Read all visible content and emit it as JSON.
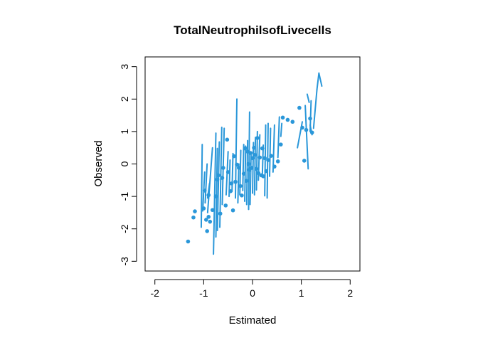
{
  "chart_data": {
    "type": "scatter",
    "title": "TotalNeutrophilsofLivecells",
    "xlabel": "Estimated",
    "ylabel": "Observed",
    "xlim": [
      -2.2,
      2.2
    ],
    "ylim": [
      -3.3,
      3.3
    ],
    "x_ticks": [
      -2,
      -1,
      0,
      1,
      2
    ],
    "y_ticks": [
      -3,
      -2,
      -1,
      0,
      1,
      2,
      3
    ],
    "x_tick_labels": [
      "-2",
      "-1",
      "0",
      "1",
      "2"
    ],
    "y_tick_labels": [
      "-3",
      "-2",
      "-1",
      "0",
      "1",
      "2",
      "3"
    ],
    "grid": false,
    "color": "#2a97d9",
    "points": [
      [
        -1.32,
        -2.39
      ],
      [
        -1.21,
        -1.65
      ],
      [
        -1.18,
        -1.46
      ],
      [
        -1.0,
        -1.37
      ],
      [
        -0.95,
        -1.72
      ],
      [
        -0.93,
        -2.07
      ],
      [
        -0.9,
        -1.63
      ],
      [
        -0.87,
        -1.78
      ],
      [
        -0.82,
        -1.42
      ],
      [
        -0.9,
        -0.96
      ],
      [
        -0.98,
        -0.82
      ],
      [
        -0.72,
        -0.48
      ],
      [
        -0.75,
        -1.0
      ],
      [
        -0.7,
        -0.35
      ],
      [
        -0.66,
        -1.53
      ],
      [
        -0.62,
        -0.43
      ],
      [
        -0.6,
        -0.12
      ],
      [
        -0.55,
        -1.28
      ],
      [
        -0.52,
        0.75
      ],
      [
        -0.5,
        -0.25
      ],
      [
        -0.45,
        -0.84
      ],
      [
        -0.43,
        -0.6
      ],
      [
        -0.4,
        -1.43
      ],
      [
        -0.38,
        0.24
      ],
      [
        -0.35,
        -0.55
      ],
      [
        -0.32,
        -0.02
      ],
      [
        -0.28,
        -0.12
      ],
      [
        -0.25,
        -0.68
      ],
      [
        -0.22,
        -0.97
      ],
      [
        -0.18,
        -0.3
      ],
      [
        -0.15,
        0.48
      ],
      [
        -0.12,
        -0.52
      ],
      [
        -0.1,
        0.38
      ],
      [
        -0.08,
        0.0
      ],
      [
        -0.06,
        -0.18
      ],
      [
        -0.04,
        0.34
      ],
      [
        -0.02,
        -0.12
      ],
      [
        0.0,
        0.18
      ],
      [
        0.03,
        0.5
      ],
      [
        0.05,
        0.28
      ],
      [
        0.08,
        -0.15
      ],
      [
        0.1,
        0.8
      ],
      [
        0.12,
        -0.28
      ],
      [
        0.15,
        0.2
      ],
      [
        0.18,
        -0.35
      ],
      [
        0.2,
        0.48
      ],
      [
        0.22,
        -0.38
      ],
      [
        0.25,
        0.18
      ],
      [
        0.28,
        -0.22
      ],
      [
        0.32,
        0.12
      ],
      [
        0.38,
        0.25
      ],
      [
        0.45,
        -0.08
      ],
      [
        0.52,
        0.08
      ],
      [
        0.58,
        0.6
      ],
      [
        0.62,
        1.43
      ],
      [
        0.72,
        1.36
      ],
      [
        0.82,
        1.3
      ],
      [
        0.96,
        1.73
      ],
      [
        1.02,
        1.12
      ],
      [
        1.06,
        0.1
      ],
      [
        1.1,
        1.05
      ],
      [
        1.18,
        1.4
      ],
      [
        1.22,
        0.97
      ]
    ],
    "segments": [
      [
        [
          -1.03,
          0.6
        ],
        [
          -1.05,
          -1.95
        ]
      ],
      [
        [
          -0.98,
          -0.25
        ],
        [
          -1.02,
          -1.45
        ]
      ],
      [
        [
          -0.93,
          0.0
        ],
        [
          -0.97,
          -1.2
        ]
      ],
      [
        [
          -0.88,
          -0.6
        ],
        [
          -0.92,
          -1.05
        ]
      ],
      [
        [
          -0.82,
          0.5
        ],
        [
          -0.92,
          -1.5
        ]
      ],
      [
        [
          -0.75,
          0.95
        ],
        [
          -0.8,
          -2.78
        ]
      ],
      [
        [
          -0.72,
          0.48
        ],
        [
          -0.75,
          -2.25
        ]
      ],
      [
        [
          -0.68,
          0.68
        ],
        [
          -0.72,
          -2.05
        ]
      ],
      [
        [
          -0.63,
          1.13
        ],
        [
          -0.67,
          -1.95
        ]
      ],
      [
        [
          -0.58,
          1.1
        ],
        [
          -0.62,
          -1.25
        ]
      ],
      [
        [
          -0.5,
          0.38
        ],
        [
          -0.54,
          -0.95
        ]
      ],
      [
        [
          -0.46,
          0.12
        ],
        [
          -0.48,
          -1.0
        ]
      ],
      [
        [
          -0.4,
          0.32
        ],
        [
          -0.42,
          -0.85
        ]
      ],
      [
        [
          -0.32,
          2.0
        ],
        [
          -0.35,
          -1.05
        ]
      ],
      [
        [
          -0.28,
          0.0
        ],
        [
          -0.3,
          -1.2
        ]
      ],
      [
        [
          -0.24,
          0.42
        ],
        [
          -0.26,
          -0.95
        ]
      ],
      [
        [
          -0.18,
          0.6
        ],
        [
          -0.2,
          -0.82
        ]
      ],
      [
        [
          -0.14,
          0.55
        ],
        [
          -0.16,
          -1.15
        ]
      ],
      [
        [
          -0.1,
          0.72
        ],
        [
          -0.12,
          -1.25
        ]
      ],
      [
        [
          -0.06,
          1.6
        ],
        [
          -0.08,
          -1.4
        ]
      ],
      [
        [
          -0.03,
          0.28
        ],
        [
          -0.05,
          -1.25
        ]
      ],
      [
        [
          0.02,
          0.66
        ],
        [
          0.0,
          -0.9
        ]
      ],
      [
        [
          0.06,
          0.82
        ],
        [
          0.04,
          -0.95
        ]
      ],
      [
        [
          0.1,
          1.0
        ],
        [
          0.08,
          -0.8
        ]
      ],
      [
        [
          0.15,
          0.9
        ],
        [
          0.12,
          -0.5
        ]
      ],
      [
        [
          0.22,
          0.58
        ],
        [
          0.2,
          -0.38
        ]
      ],
      [
        [
          0.27,
          1.2
        ],
        [
          0.25,
          -0.98
        ]
      ],
      [
        [
          0.32,
          1.25
        ],
        [
          0.3,
          -1.05
        ]
      ],
      [
        [
          0.37,
          1.1
        ],
        [
          0.35,
          -0.38
        ]
      ],
      [
        [
          0.45,
          1.2
        ],
        [
          0.42,
          -0.25
        ]
      ],
      [
        [
          0.55,
          1.45
        ],
        [
          0.52,
          0.2
        ]
      ],
      [
        [
          0.6,
          1.25
        ],
        [
          0.58,
          0.85
        ]
      ],
      [
        [
          0.92,
          0.5
        ],
        [
          1.02,
          1.3
        ]
      ],
      [
        [
          1.08,
          1.8
        ],
        [
          1.14,
          -0.15
        ]
      ],
      [
        [
          1.12,
          2.15
        ],
        [
          1.16,
          1.9
        ]
      ],
      [
        [
          1.18,
          1.2
        ],
        [
          1.22,
          0.9
        ]
      ],
      [
        [
          1.2,
          1.95
        ],
        [
          1.18,
          1.0
        ]
      ],
      [
        [
          1.25,
          1.1
        ],
        [
          1.32,
          2.3
        ]
      ],
      [
        [
          1.32,
          2.3
        ],
        [
          1.36,
          2.8
        ]
      ],
      [
        [
          1.36,
          2.8
        ],
        [
          1.42,
          2.4
        ]
      ]
    ]
  }
}
